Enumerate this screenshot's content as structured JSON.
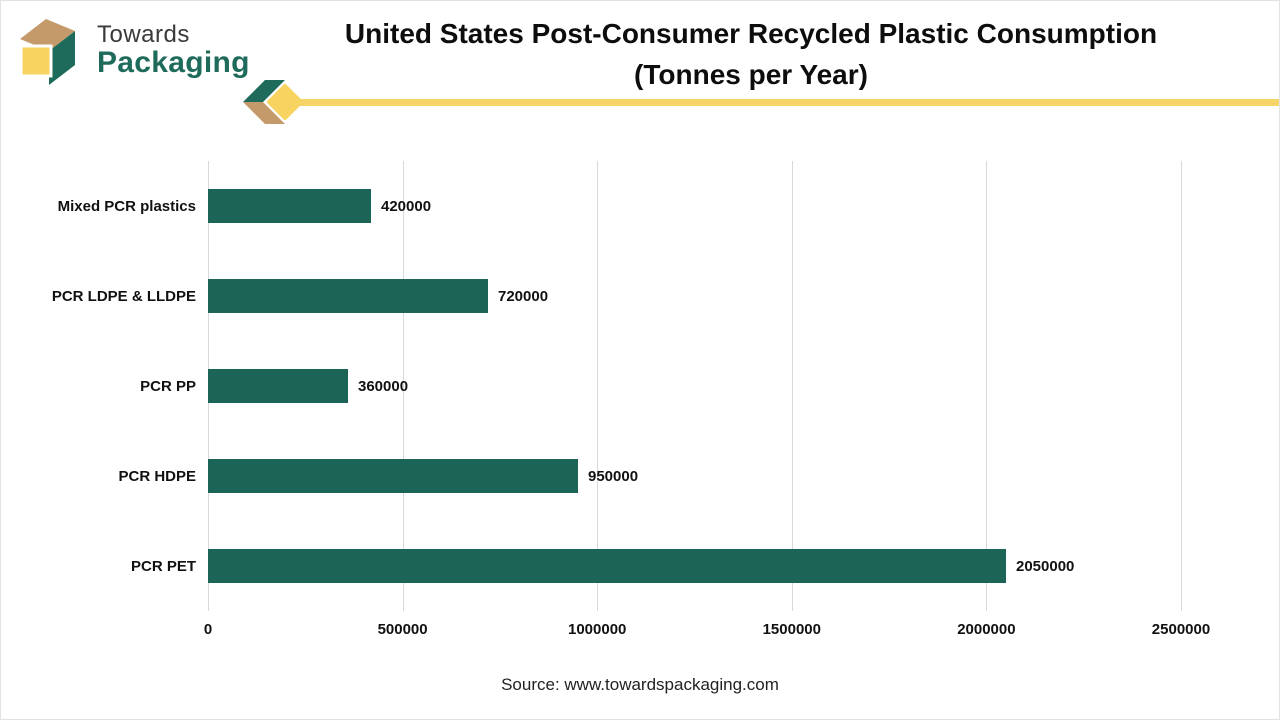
{
  "logo": {
    "line1": "Towards",
    "line2": "Packaging"
  },
  "header": {
    "title_line1": "United States Post-Consumer Recycled Plastic Consumption",
    "title_line2": "(Tonnes per Year)"
  },
  "footer": {
    "source": "Source: www.towardspackaging.com"
  },
  "colors": {
    "bar": "#1c6456",
    "logo_green": "#1e6b5b",
    "logo_tan": "#c49a6b",
    "logo_yellow": "#f7d35f",
    "accent_line_yellow": "#f5d46a",
    "gridline": "#d9d9d9"
  },
  "chart_data": {
    "type": "bar",
    "orientation": "horizontal",
    "title": "United States Post-Consumer Recycled Plastic Consumption (Tonnes per Year)",
    "categories": [
      "Mixed PCR plastics",
      "PCR LDPE & LLDPE",
      "PCR PP",
      "PCR HDPE",
      "PCR PET"
    ],
    "values": [
      420000,
      720000,
      360000,
      950000,
      2050000
    ],
    "value_labels": [
      "420000",
      "720000",
      "360000",
      "950000",
      "2050000"
    ],
    "xlabel": "",
    "ylabel": "",
    "xlim": [
      0,
      2500000
    ],
    "x_ticks": [
      0,
      500000,
      1000000,
      1500000,
      2000000,
      2500000
    ],
    "x_tick_labels": [
      "0",
      "500000",
      "1000000",
      "1500000",
      "2000000",
      "2500000"
    ],
    "grid": "vertical",
    "legend": "none"
  }
}
